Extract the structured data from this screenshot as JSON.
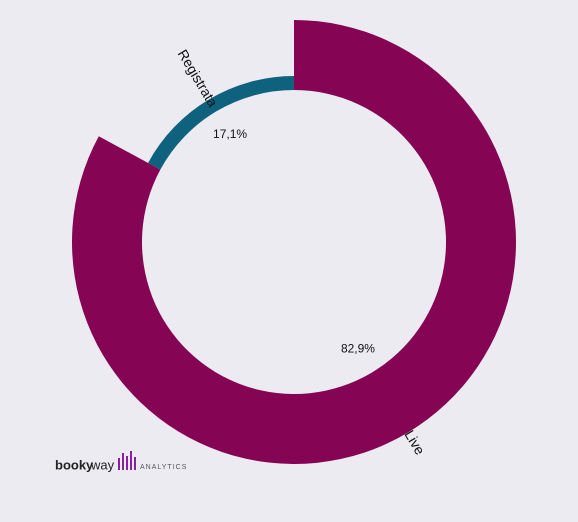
{
  "chart_data": {
    "type": "donut",
    "categories": [
      "Live",
      "Registrata"
    ],
    "values": [
      82.9,
      17.1
    ],
    "value_labels": [
      "82,9%",
      "17,1%"
    ],
    "colors": [
      "#850453",
      "#0e627e"
    ]
  },
  "logo": {
    "bold": "booky",
    "light": "way",
    "tagline": "ANALYTICS"
  }
}
